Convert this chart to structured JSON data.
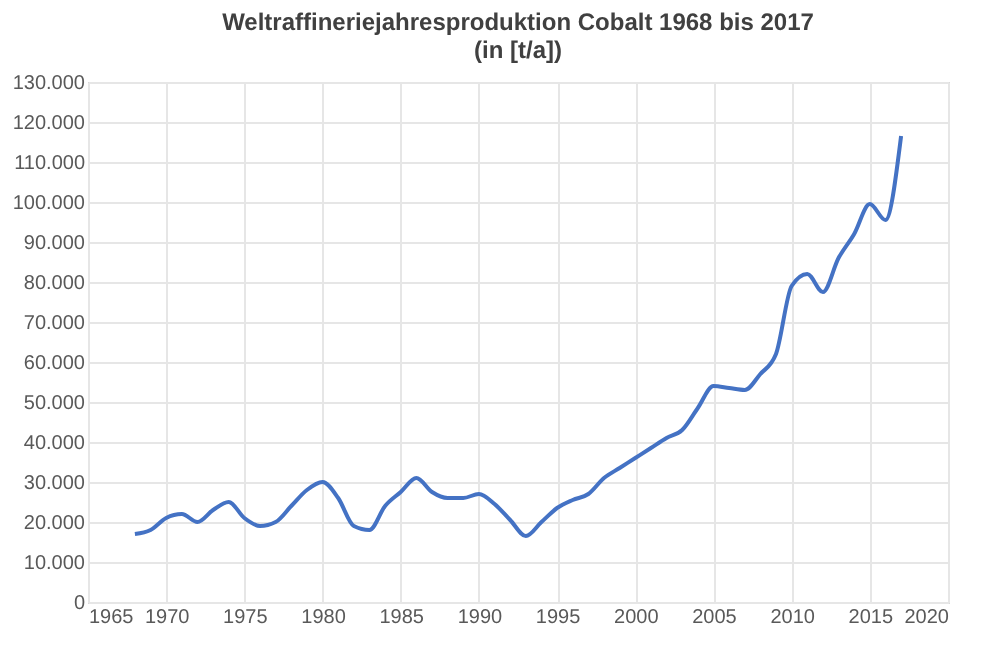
{
  "chart_data": {
    "type": "line",
    "title": [
      "Weltraffineriejahresproduktion Cobalt 1968 bis 2017",
      "(in [t/a])"
    ],
    "x": [
      1968,
      1969,
      1970,
      1971,
      1972,
      1973,
      1974,
      1975,
      1976,
      1977,
      1978,
      1979,
      1980,
      1981,
      1982,
      1983,
      1984,
      1985,
      1986,
      1987,
      1988,
      1989,
      1990,
      1991,
      1992,
      1993,
      1994,
      1995,
      1996,
      1997,
      1998,
      1999,
      2000,
      2001,
      2002,
      2003,
      2004,
      2005,
      2006,
      2007,
      2008,
      2009,
      2010,
      2011,
      2012,
      2013,
      2014,
      2015,
      2016,
      2017
    ],
    "series": [
      {
        "color": "#4472c4",
        "values": [
          17000,
          18000,
          21000,
          22000,
          20000,
          23000,
          25000,
          21000,
          19000,
          20000,
          24000,
          28000,
          30000,
          26000,
          19000,
          18000,
          24000,
          27500,
          31000,
          27500,
          26000,
          26000,
          27000,
          24500,
          20500,
          16500,
          20000,
          23500,
          25500,
          27000,
          31000,
          33500,
          36000,
          38500,
          41000,
          43000,
          48500,
          54000,
          53500,
          53000,
          57000,
          62000,
          79000,
          82000,
          77500,
          86000,
          92000,
          99500,
          95500,
          116500
        ]
      }
    ],
    "xlim": [
      1965,
      2020
    ],
    "xticks": [
      1965,
      1970,
      1975,
      1980,
      1985,
      1990,
      1995,
      2000,
      2005,
      2010,
      2015,
      2020
    ],
    "ylim": [
      0,
      130000
    ],
    "yticks": [
      {
        "value": 0,
        "label": "0"
      },
      {
        "value": 10000,
        "label": "10.000"
      },
      {
        "value": 20000,
        "label": "20.000"
      },
      {
        "value": 30000,
        "label": "30.000"
      },
      {
        "value": 40000,
        "label": "40.000"
      },
      {
        "value": 50000,
        "label": "50.000"
      },
      {
        "value": 60000,
        "label": "60.000"
      },
      {
        "value": 70000,
        "label": "70.000"
      },
      {
        "value": 80000,
        "label": "80.000"
      },
      {
        "value": 90000,
        "label": "90.000"
      },
      {
        "value": 100000,
        "label": "100.000"
      },
      {
        "value": 110000,
        "label": "110.000"
      },
      {
        "value": 120000,
        "label": "120.000"
      },
      {
        "value": 130000,
        "label": "130.000"
      }
    ],
    "grid": true,
    "marker": "none",
    "line_style": "solid"
  }
}
